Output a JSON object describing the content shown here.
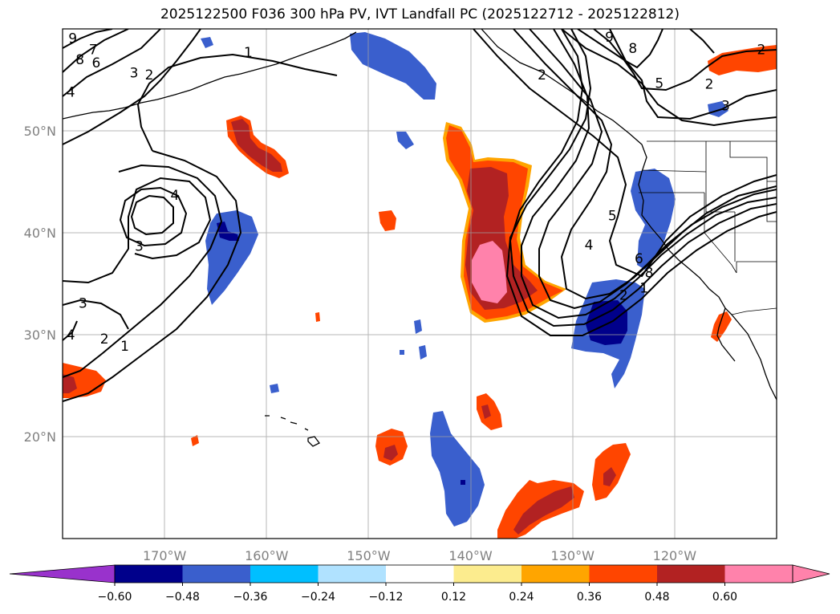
{
  "title": "2025122500 F036 300 hPa PV, IVT Landfall PC (2025122712 - 2025122812)",
  "map": {
    "lon_range": [
      -180,
      -110
    ],
    "lat_range": [
      10,
      60
    ],
    "lon_ticks": [
      {
        "value": -170,
        "label": "170°W"
      },
      {
        "value": -160,
        "label": "160°W"
      },
      {
        "value": -150,
        "label": "150°W"
      },
      {
        "value": -140,
        "label": "140°W"
      },
      {
        "value": -130,
        "label": "130°W"
      },
      {
        "value": -120,
        "label": "120°W"
      }
    ],
    "lat_ticks": [
      {
        "value": 20,
        "label": "20°N"
      },
      {
        "value": 30,
        "label": "30°N"
      },
      {
        "value": 40,
        "label": "40°N"
      },
      {
        "value": 50,
        "label": "50°N"
      }
    ],
    "grid": true,
    "pv_contour_labels": [
      {
        "lon": -179.0,
        "lat": 59.1,
        "label": "9"
      },
      {
        "lon": -178.3,
        "lat": 57.0,
        "label": "8"
      },
      {
        "lon": -177.0,
        "lat": 58.0,
        "label": "7"
      },
      {
        "lon": -176.7,
        "lat": 56.7,
        "label": "6"
      },
      {
        "lon": -173.0,
        "lat": 55.7,
        "label": "3"
      },
      {
        "lon": -171.5,
        "lat": 55.5,
        "label": "2"
      },
      {
        "lon": -179.2,
        "lat": 53.8,
        "label": "4"
      },
      {
        "lon": -161.8,
        "lat": 57.7,
        "label": "1"
      },
      {
        "lon": -169.0,
        "lat": 43.7,
        "label": "4"
      },
      {
        "lon": -172.5,
        "lat": 38.7,
        "label": "3"
      },
      {
        "lon": -178.0,
        "lat": 33.1,
        "label": "3"
      },
      {
        "lon": -179.2,
        "lat": 30.0,
        "label": "4"
      },
      {
        "lon": -175.9,
        "lat": 29.6,
        "label": "2"
      },
      {
        "lon": -173.9,
        "lat": 28.9,
        "label": "1"
      },
      {
        "lon": -126.1,
        "lat": 41.7,
        "label": "5"
      },
      {
        "lon": -128.4,
        "lat": 38.8,
        "label": "4"
      },
      {
        "lon": -123.5,
        "lat": 37.5,
        "label": "6"
      },
      {
        "lon": -122.5,
        "lat": 36.1,
        "label": "8"
      },
      {
        "lon": -125.0,
        "lat": 33.9,
        "label": "2"
      },
      {
        "lon": -123.0,
        "lat": 34.6,
        "label": "1"
      },
      {
        "lon": -121.5,
        "lat": 54.7,
        "label": "5"
      },
      {
        "lon": -126.4,
        "lat": 59.2,
        "label": "9"
      },
      {
        "lon": -124.1,
        "lat": 58.1,
        "label": "8"
      },
      {
        "lon": -116.6,
        "lat": 54.6,
        "label": "2"
      },
      {
        "lon": -115.0,
        "lat": 52.5,
        "label": "3"
      },
      {
        "lon": -111.5,
        "lat": 58.0,
        "label": "2"
      },
      {
        "lon": -133.0,
        "lat": 55.5,
        "label": "2"
      }
    ]
  },
  "colorbar": {
    "tick_labels": [
      "−0.60",
      "−0.48",
      "−0.36",
      "−0.24",
      "−0.12",
      "0.12",
      "0.24",
      "0.36",
      "0.48",
      "0.60"
    ],
    "colors": [
      "#9932cc",
      "#00008b",
      "#3a5fcd",
      "#00bfff",
      "#b0e2ff",
      "#ffffff",
      "#fcec8e",
      "#ffa500",
      "#ff4500",
      "#b22222",
      "#ff82ab",
      "#ff82ab"
    ],
    "extend": "both"
  }
}
